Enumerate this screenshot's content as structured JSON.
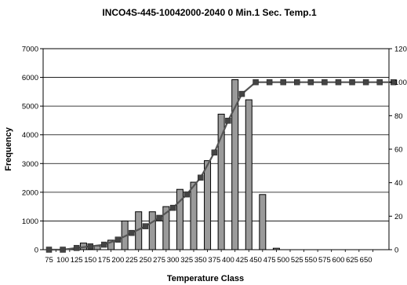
{
  "chart_data": {
    "type": "bar",
    "title": "INCO4S-445-10042000-2040  0 Min.1  Sec. Temp.1",
    "xlabel": "Temperature Class",
    "ylabel": "Frequency",
    "y2label": "",
    "ylim": [
      0,
      7000
    ],
    "y2lim": [
      0,
      120
    ],
    "yticks": [
      "0",
      "1000",
      "2000",
      "3000",
      "4000",
      "5000",
      "6000",
      "7000"
    ],
    "y2ticks": [
      "0",
      "20",
      "40",
      "60",
      "80",
      "100",
      "120"
    ],
    "categories": [
      "75",
      "100",
      "125",
      "150",
      "175",
      "200",
      "225",
      "250",
      "275",
      "300",
      "325",
      "350",
      "375",
      "400",
      "425",
      "450",
      "475",
      "500",
      "525",
      "550",
      "575",
      "600",
      "625",
      "650"
    ],
    "series": [
      {
        "type": "bar",
        "axis": "left",
        "values": [
          0,
          0,
          230,
          130,
          330,
          1000,
          1320,
          1320,
          1500,
          2100,
          2350,
          3100,
          4720,
          5920,
          5220,
          1920,
          50,
          0,
          0,
          0,
          0,
          0,
          0,
          0
        ]
      },
      {
        "type": "line",
        "axis": "right",
        "x": [
          75,
          100,
          125,
          150,
          175,
          200,
          225,
          250,
          275,
          300,
          325,
          350,
          375,
          400,
          425,
          450,
          475,
          500,
          525,
          550,
          575,
          600,
          625,
          650,
          675,
          700
        ],
        "values": [
          0,
          0,
          1,
          2,
          3,
          6,
          10,
          14,
          19,
          25,
          33,
          43,
          58,
          77,
          93,
          100,
          100,
          100,
          100,
          100,
          100,
          100,
          100,
          100,
          100,
          100
        ]
      }
    ],
    "grid": "horizontal"
  }
}
